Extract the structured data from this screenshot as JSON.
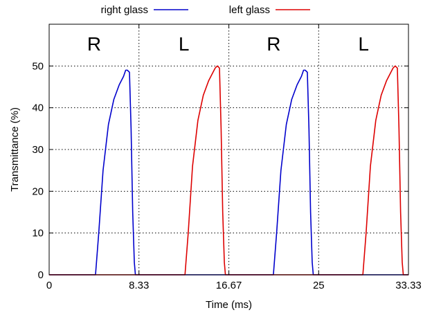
{
  "chart_data": {
    "type": "line",
    "xlabel": "Time (ms)",
    "ylabel": "Transmittance (%)",
    "xlim": [
      0,
      33.33
    ],
    "ylim": [
      0,
      60
    ],
    "x_tick_labels": [
      "0",
      "8.33",
      "16.67",
      "25",
      "33.33"
    ],
    "x_ticks": [
      0,
      8.33,
      16.67,
      25,
      33.33
    ],
    "y_ticks": [
      0,
      10,
      20,
      30,
      40,
      50
    ],
    "grid": "dotted at x = 8.33, 16.67, 25 and y = 10, 20, 30, 40, 50",
    "legend_position": "top",
    "frame_labels": [
      {
        "text": "R",
        "x": 4.17
      },
      {
        "text": "L",
        "x": 12.5
      },
      {
        "text": "R",
        "x": 20.83
      },
      {
        "text": "L",
        "x": 29.17
      }
    ],
    "series": [
      {
        "name": "right glass",
        "color": "#0000cc",
        "x": [
          0,
          4.3,
          4.6,
          5.0,
          5.5,
          6.0,
          6.5,
          6.9,
          7.1,
          7.25,
          7.45,
          7.6,
          7.75,
          7.9,
          8.0,
          8.33,
          12.0,
          16.67,
          20.8,
          21.1,
          21.5,
          22.0,
          22.5,
          23.0,
          23.4,
          23.6,
          23.75,
          23.95,
          24.1,
          24.25,
          24.4,
          24.5,
          25,
          29.0,
          33.33
        ],
        "values": [
          0,
          0,
          10,
          25,
          36,
          42,
          45.5,
          47.5,
          49,
          49,
          48.5,
          35,
          15,
          3,
          0,
          0,
          0,
          0,
          0,
          10,
          25,
          36,
          42,
          45.5,
          47.5,
          49,
          49,
          48.5,
          35,
          15,
          3,
          0,
          0,
          0,
          0
        ]
      },
      {
        "name": "left glass",
        "color": "#dd0000",
        "x": [
          0,
          4.0,
          8.33,
          12.6,
          12.9,
          13.3,
          13.8,
          14.3,
          14.8,
          15.2,
          15.4,
          15.6,
          15.8,
          15.95,
          16.1,
          16.25,
          16.35,
          16.67,
          20.0,
          25,
          29.1,
          29.4,
          29.8,
          30.3,
          30.8,
          31.3,
          31.7,
          31.9,
          32.1,
          32.3,
          32.45,
          32.6,
          32.75,
          32.85,
          33.33
        ],
        "values": [
          0,
          0,
          0,
          0,
          10,
          26,
          37,
          43,
          46.5,
          48.5,
          49.5,
          50,
          49.5,
          35,
          15,
          3,
          0,
          0,
          0,
          0,
          0,
          10,
          26,
          37,
          43,
          46.5,
          48.5,
          49.5,
          50,
          49.5,
          35,
          15,
          3,
          0,
          0
        ]
      }
    ]
  }
}
